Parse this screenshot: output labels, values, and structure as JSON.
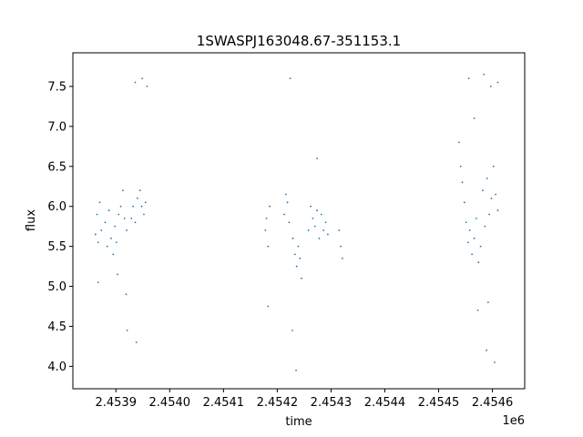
{
  "chart_data": {
    "type": "scatter",
    "title": "1SWASPJ163048.67-351153.1",
    "xlabel": "time",
    "ylabel": "flux",
    "x_offset_label": "1e6",
    "x_tick_labels": [
      "2.4539",
      "2.4540",
      "2.4541",
      "2.4542",
      "2.4543",
      "2.4544",
      "2.4545",
      "2.4546"
    ],
    "y_tick_labels": [
      "4.0",
      "4.5",
      "5.0",
      "5.5",
      "6.0",
      "6.5",
      "7.0",
      "7.5"
    ],
    "x_ticks": [
      2453900,
      2454000,
      2454100,
      2454200,
      2454300,
      2454400,
      2454500,
      2454600
    ],
    "y_ticks": [
      4.0,
      4.5,
      5.0,
      5.5,
      6.0,
      6.5,
      7.0,
      7.5
    ],
    "xlim": [
      2453820,
      2454660
    ],
    "ylim": [
      3.72,
      7.92
    ],
    "grid": false,
    "marker_color": "#1f77b4",
    "series": [
      {
        "points": [
          [
            2453862,
            5.65
          ],
          [
            2453865,
            5.9
          ],
          [
            2453867,
            5.55
          ],
          [
            2453870,
            6.05
          ],
          [
            2453873,
            5.7
          ],
          [
            2453880,
            5.8
          ],
          [
            2453884,
            5.5
          ],
          [
            2453887,
            5.95
          ],
          [
            2453891,
            5.6
          ],
          [
            2453895,
            5.4
          ],
          [
            2453898,
            5.75
          ],
          [
            2453901,
            5.55
          ],
          [
            2453905,
            5.9
          ],
          [
            2453909,
            6.0
          ],
          [
            2453913,
            6.2
          ],
          [
            2453916,
            5.85
          ],
          [
            2453920,
            5.7
          ],
          [
            2453929,
            5.85
          ],
          [
            2453932,
            6.0
          ],
          [
            2453936,
            5.8
          ],
          [
            2453940,
            6.1
          ],
          [
            2453945,
            6.2
          ],
          [
            2453948,
            6.0
          ],
          [
            2453952,
            5.9
          ],
          [
            2453955,
            6.05
          ],
          [
            2453921,
            4.45
          ],
          [
            2453936,
            7.55
          ],
          [
            2453949,
            7.6
          ],
          [
            2453958,
            7.5
          ],
          [
            2453903,
            5.15
          ],
          [
            2453919,
            4.9
          ],
          [
            2453938,
            4.3
          ],
          [
            2453867,
            5.05
          ],
          [
            2454178,
            5.7
          ],
          [
            2454180,
            5.85
          ],
          [
            2454183,
            5.5
          ],
          [
            2454186,
            6.0
          ],
          [
            2454213,
            5.9
          ],
          [
            2454216,
            6.15
          ],
          [
            2454219,
            6.05
          ],
          [
            2454222,
            5.8
          ],
          [
            2454229,
            5.6
          ],
          [
            2454233,
            5.4
          ],
          [
            2454236,
            5.25
          ],
          [
            2454239,
            5.5
          ],
          [
            2454242,
            5.35
          ],
          [
            2454245,
            5.1
          ],
          [
            2454258,
            5.7
          ],
          [
            2454262,
            6.0
          ],
          [
            2454266,
            5.85
          ],
          [
            2454270,
            5.75
          ],
          [
            2454274,
            5.95
          ],
          [
            2454278,
            5.6
          ],
          [
            2454282,
            5.9
          ],
          [
            2454286,
            5.7
          ],
          [
            2454290,
            5.8
          ],
          [
            2454294,
            5.65
          ],
          [
            2454315,
            5.7
          ],
          [
            2454318,
            5.5
          ],
          [
            2454321,
            5.35
          ],
          [
            2454224,
            7.6
          ],
          [
            2454228,
            4.45
          ],
          [
            2454235,
            3.95
          ],
          [
            2454274,
            6.6
          ],
          [
            2454183,
            4.75
          ],
          [
            2454538,
            6.8
          ],
          [
            2454541,
            6.5
          ],
          [
            2454544,
            6.3
          ],
          [
            2454548,
            6.05
          ],
          [
            2454551,
            5.8
          ],
          [
            2454555,
            5.55
          ],
          [
            2454558,
            5.7
          ],
          [
            2454562,
            5.4
          ],
          [
            2454566,
            5.6
          ],
          [
            2454570,
            5.85
          ],
          [
            2454574,
            5.3
          ],
          [
            2454578,
            5.5
          ],
          [
            2454582,
            6.2
          ],
          [
            2454586,
            5.75
          ],
          [
            2454590,
            6.35
          ],
          [
            2454594,
            5.9
          ],
          [
            2454598,
            6.1
          ],
          [
            2454602,
            6.5
          ],
          [
            2454606,
            6.15
          ],
          [
            2454610,
            5.95
          ],
          [
            2454556,
            7.6
          ],
          [
            2454573,
            4.7
          ],
          [
            2454584,
            7.65
          ],
          [
            2454589,
            4.2
          ],
          [
            2454597,
            7.5
          ],
          [
            2454604,
            4.05
          ],
          [
            2454610,
            7.55
          ],
          [
            2454566,
            7.1
          ],
          [
            2454592,
            4.8
          ]
        ]
      }
    ]
  }
}
